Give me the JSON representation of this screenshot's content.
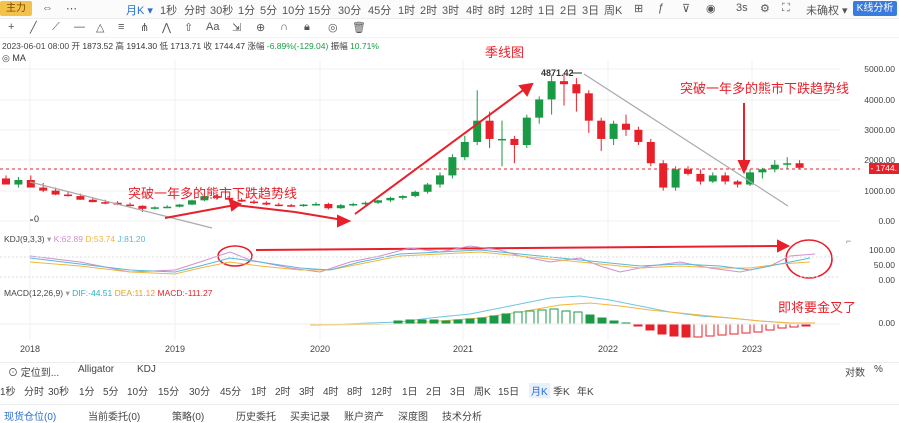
{
  "toolbar": {
    "badge": "主力",
    "period_selected": "月K",
    "periods": [
      "1秒",
      "分时",
      "30秒",
      "1分",
      "5分",
      "10分",
      "15分",
      "30分",
      "45分",
      "1时",
      "2时",
      "3时",
      "4时",
      "8时",
      "12时",
      "1日",
      "2日",
      "3日",
      "周K"
    ],
    "right_text": "3s",
    "adjust": "未确权",
    "kline_button": "K线分析"
  },
  "info": {
    "date": "2023-06-01 08:00",
    "open_label": "开",
    "open": "1873.52",
    "high_label": "高",
    "high": "1914.30",
    "low_label": "低",
    "low": "1713.71",
    "close_label": "收",
    "close": "1744.47",
    "change_label": "涨幅",
    "change": "-6.89%(-129.04)",
    "amp_label": "振幅",
    "amp": "10.71%"
  },
  "ma_label": "MA",
  "kdj": {
    "title": "KDJ(9,3,3)",
    "k": "K:62.89",
    "d": "D:53.74",
    "j": "J:81.20"
  },
  "macd": {
    "title": "MACD(12,26,9)",
    "dif": "DIF:-44.51",
    "dea": "DEA:11.12",
    "macd": "MACD:-111.27"
  },
  "y_axis": {
    "price": [
      "5000.00",
      "4000.00",
      "3000.00",
      "2000.00",
      "1000.00",
      "0.00"
    ],
    "current_price": "1744.",
    "kdj": [
      "100.00",
      "50.00",
      "0.00"
    ],
    "macd": [
      "0.00"
    ]
  },
  "x_axis": [
    "2018",
    "2019",
    "2020",
    "2021",
    "2022",
    "2023"
  ],
  "markers": {
    "low": "0",
    "peak": "4871.42"
  },
  "annotations": {
    "left_break": "突破一年多的熊市下跌趋势线",
    "season": "季线图",
    "right_break": "突破一年多的熊市下跌趋势线",
    "golden": "即将要金叉了"
  },
  "tools_row": {
    "locate": "定位到...",
    "alligator": "Alligator",
    "kdj": "KDJ",
    "right": "对数",
    "pct": "%"
  },
  "period_row": [
    "1秒",
    "分时",
    "30秒",
    "1分",
    "5分",
    "10分",
    "15分",
    "30分",
    "45分",
    "1时",
    "2时",
    "3时",
    "4时",
    "8时",
    "12时",
    "1日",
    "2日",
    "3日",
    "周K",
    "15日",
    "月K",
    "季K",
    "年K"
  ],
  "period_row_selected": "月K",
  "bottom_tabs": [
    "现货仓位(0)",
    "当前委托(0)",
    "策略(0)",
    "历史委托",
    "买卖记录",
    "账户资产",
    "深度图",
    "技术分析"
  ],
  "colors": {
    "up": "#1a9a45",
    "down": "#e8202a",
    "accent": "#2a6fd6"
  },
  "chart_data": {
    "type": "candlestick",
    "interval": "monthly",
    "x_labels": [
      "2018",
      "2019",
      "2020",
      "2021",
      "2022",
      "2023"
    ],
    "ylim": [
      0,
      5000
    ],
    "note_values_estimated": true
  }
}
